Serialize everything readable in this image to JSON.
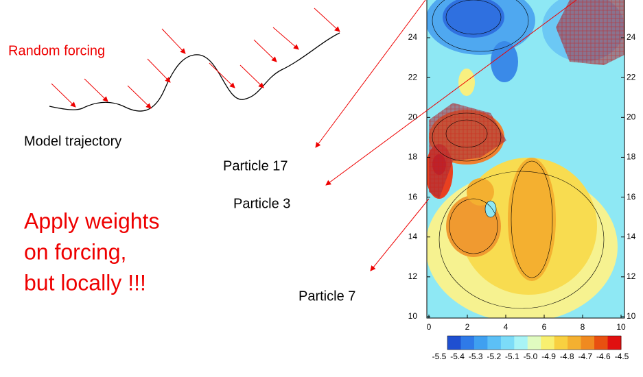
{
  "labels": {
    "forcing": "Random forcing",
    "trajectory": "Model trajectory",
    "message": [
      "Apply weights",
      "on forcing,",
      "but locally !!!"
    ],
    "particles": [
      "Particle 17",
      "Particle 3",
      "Particle 7"
    ]
  },
  "map": {
    "yticks": [
      10,
      12,
      14,
      16,
      18,
      20,
      22,
      24
    ],
    "xticks": [
      0,
      2,
      4,
      6,
      8,
      10
    ],
    "colorbar": [
      "-5.5",
      "-5.4",
      "-5.3",
      "-5.2",
      "-5.1",
      "-5.0",
      "-4.9",
      "-4.8",
      "-4.7",
      "-4.6",
      "-4.5"
    ]
  }
}
